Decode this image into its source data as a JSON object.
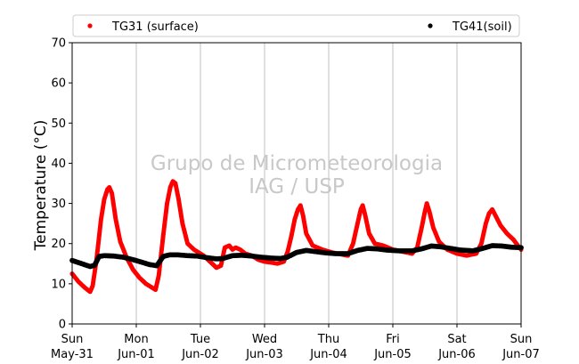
{
  "chart_data": {
    "type": "scatter",
    "ylabel": "Temperature (°C)",
    "ylim": [
      0,
      70
    ],
    "xlim_days": [
      0,
      7
    ],
    "yticks": [
      0,
      10,
      20,
      30,
      40,
      50,
      60,
      70
    ],
    "xticks": [
      {
        "day": 0,
        "line1": "Sun",
        "line2": "May-31"
      },
      {
        "day": 1,
        "line1": "Mon",
        "line2": "Jun-01"
      },
      {
        "day": 2,
        "line1": "Tue",
        "line2": "Jun-02"
      },
      {
        "day": 3,
        "line1": "Wed",
        "line2": "Jun-03"
      },
      {
        "day": 4,
        "line1": "Thu",
        "line2": "Jun-04"
      },
      {
        "day": 5,
        "line1": "Fri",
        "line2": "Jun-05"
      },
      {
        "day": 6,
        "line1": "Sat",
        "line2": "Jun-06"
      },
      {
        "day": 7,
        "line1": "Sun",
        "line2": "Jun-07"
      }
    ],
    "grid": "vertical-at-day-ticks",
    "legend_position": "top",
    "watermark": [
      "Grupo de Micrometeorologia",
      "IAG / USP"
    ],
    "series": [
      {
        "name": "TG31 (surface)",
        "color": "#ff0000",
        "points": [
          [
            0.0,
            12.5
          ],
          [
            0.1,
            10.5
          ],
          [
            0.2,
            9.0
          ],
          [
            0.28,
            8.0
          ],
          [
            0.32,
            9.5
          ],
          [
            0.38,
            16.0
          ],
          [
            0.45,
            26.0
          ],
          [
            0.5,
            31.0
          ],
          [
            0.55,
            33.5
          ],
          [
            0.58,
            34.0
          ],
          [
            0.62,
            32.5
          ],
          [
            0.68,
            26.0
          ],
          [
            0.75,
            20.5
          ],
          [
            0.85,
            16.5
          ],
          [
            0.95,
            13.5
          ],
          [
            1.05,
            11.5
          ],
          [
            1.15,
            10.0
          ],
          [
            1.25,
            9.0
          ],
          [
            1.3,
            8.5
          ],
          [
            1.35,
            12.0
          ],
          [
            1.42,
            22.0
          ],
          [
            1.48,
            30.0
          ],
          [
            1.53,
            34.0
          ],
          [
            1.57,
            35.5
          ],
          [
            1.61,
            35.0
          ],
          [
            1.66,
            31.0
          ],
          [
            1.72,
            25.0
          ],
          [
            1.8,
            20.0
          ],
          [
            1.9,
            18.5
          ],
          [
            1.95,
            18.0
          ],
          [
            2.05,
            17.0
          ],
          [
            2.15,
            15.5
          ],
          [
            2.25,
            14.0
          ],
          [
            2.32,
            14.5
          ],
          [
            2.38,
            19.0
          ],
          [
            2.45,
            19.5
          ],
          [
            2.5,
            18.5
          ],
          [
            2.55,
            19.0
          ],
          [
            2.62,
            18.5
          ],
          [
            2.7,
            17.5
          ],
          [
            2.8,
            17.0
          ],
          [
            2.9,
            16.0
          ],
          [
            3.0,
            15.5
          ],
          [
            3.1,
            15.3
          ],
          [
            3.2,
            15.0
          ],
          [
            3.3,
            15.5
          ],
          [
            3.36,
            18.0
          ],
          [
            3.42,
            22.0
          ],
          [
            3.47,
            26.0
          ],
          [
            3.52,
            28.5
          ],
          [
            3.56,
            29.5
          ],
          [
            3.6,
            27.0
          ],
          [
            3.65,
            22.5
          ],
          [
            3.75,
            19.5
          ],
          [
            3.9,
            18.5
          ],
          [
            4.05,
            17.8
          ],
          [
            4.2,
            17.3
          ],
          [
            4.3,
            17.0
          ],
          [
            4.38,
            20.0
          ],
          [
            4.45,
            25.0
          ],
          [
            4.5,
            28.5
          ],
          [
            4.53,
            29.5
          ],
          [
            4.57,
            27.0
          ],
          [
            4.63,
            22.5
          ],
          [
            4.72,
            20.0
          ],
          [
            4.85,
            19.5
          ],
          [
            5.0,
            18.5
          ],
          [
            5.15,
            18.0
          ],
          [
            5.3,
            17.5
          ],
          [
            5.38,
            19.0
          ],
          [
            5.45,
            24.0
          ],
          [
            5.5,
            28.0
          ],
          [
            5.53,
            30.0
          ],
          [
            5.57,
            28.0
          ],
          [
            5.63,
            24.0
          ],
          [
            5.72,
            20.5
          ],
          [
            5.85,
            18.5
          ],
          [
            6.0,
            17.5
          ],
          [
            6.15,
            17.0
          ],
          [
            6.3,
            17.5
          ],
          [
            6.38,
            20.0
          ],
          [
            6.45,
            25.0
          ],
          [
            6.5,
            27.5
          ],
          [
            6.55,
            28.5
          ],
          [
            6.6,
            27.0
          ],
          [
            6.68,
            24.5
          ],
          [
            6.78,
            22.5
          ],
          [
            6.88,
            21.0
          ],
          [
            6.95,
            19.5
          ],
          [
            7.0,
            18.5
          ]
        ]
      },
      {
        "name": "TG41(soil)",
        "color": "#000000",
        "points": [
          [
            0.0,
            15.8
          ],
          [
            0.15,
            15.0
          ],
          [
            0.28,
            14.3
          ],
          [
            0.35,
            14.6
          ],
          [
            0.42,
            16.8
          ],
          [
            0.5,
            17.0
          ],
          [
            0.65,
            16.9
          ],
          [
            0.8,
            16.6
          ],
          [
            0.95,
            16.0
          ],
          [
            1.1,
            15.3
          ],
          [
            1.2,
            14.8
          ],
          [
            1.32,
            14.5
          ],
          [
            1.42,
            16.8
          ],
          [
            1.52,
            17.2
          ],
          [
            1.65,
            17.2
          ],
          [
            1.8,
            17.0
          ],
          [
            1.95,
            16.9
          ],
          [
            2.1,
            16.5
          ],
          [
            2.25,
            16.2
          ],
          [
            2.35,
            16.3
          ],
          [
            2.5,
            17.0
          ],
          [
            2.65,
            17.1
          ],
          [
            2.8,
            16.9
          ],
          [
            2.95,
            16.6
          ],
          [
            3.1,
            16.4
          ],
          [
            3.25,
            16.3
          ],
          [
            3.35,
            16.6
          ],
          [
            3.5,
            17.8
          ],
          [
            3.65,
            18.3
          ],
          [
            3.8,
            18.0
          ],
          [
            3.95,
            17.7
          ],
          [
            4.1,
            17.5
          ],
          [
            4.3,
            17.5
          ],
          [
            4.45,
            18.3
          ],
          [
            4.6,
            18.8
          ],
          [
            4.75,
            18.7
          ],
          [
            4.9,
            18.4
          ],
          [
            5.1,
            18.2
          ],
          [
            5.3,
            18.2
          ],
          [
            5.45,
            18.7
          ],
          [
            5.6,
            19.4
          ],
          [
            5.75,
            19.2
          ],
          [
            5.9,
            18.8
          ],
          [
            6.05,
            18.4
          ],
          [
            6.25,
            18.2
          ],
          [
            6.4,
            18.8
          ],
          [
            6.55,
            19.5
          ],
          [
            6.7,
            19.4
          ],
          [
            6.85,
            19.1
          ],
          [
            7.0,
            19.0
          ]
        ]
      }
    ]
  }
}
